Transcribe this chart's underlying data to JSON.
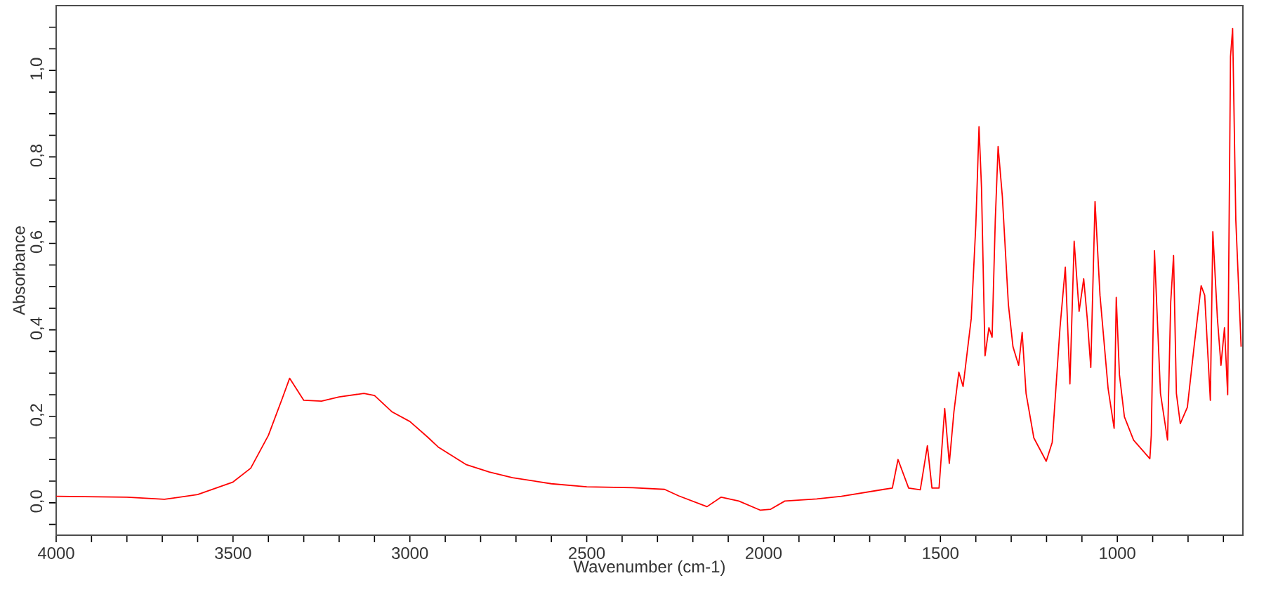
{
  "chart_data": {
    "type": "line",
    "xlabel": "Wavenumber (cm-1)",
    "ylabel": "Absorbance",
    "xlim": [
      4000,
      645
    ],
    "ylim": [
      -0.075,
      1.15
    ],
    "xticks": [
      {
        "value": 4000,
        "label": "4000"
      },
      {
        "value": 3900,
        "label": null
      },
      {
        "value": 3800,
        "label": null
      },
      {
        "value": 3700,
        "label": null
      },
      {
        "value": 3600,
        "label": null
      },
      {
        "value": 3500,
        "label": "3500"
      },
      {
        "value": 3400,
        "label": null
      },
      {
        "value": 3300,
        "label": null
      },
      {
        "value": 3200,
        "label": null
      },
      {
        "value": 3100,
        "label": null
      },
      {
        "value": 3000,
        "label": "3000"
      },
      {
        "value": 2900,
        "label": null
      },
      {
        "value": 2800,
        "label": null
      },
      {
        "value": 2700,
        "label": null
      },
      {
        "value": 2600,
        "label": null
      },
      {
        "value": 2500,
        "label": "2500"
      },
      {
        "value": 2400,
        "label": null
      },
      {
        "value": 2300,
        "label": null
      },
      {
        "value": 2200,
        "label": null
      },
      {
        "value": 2100,
        "label": null
      },
      {
        "value": 2000,
        "label": "2000"
      },
      {
        "value": 1900,
        "label": null
      },
      {
        "value": 1800,
        "label": null
      },
      {
        "value": 1700,
        "label": null
      },
      {
        "value": 1600,
        "label": null
      },
      {
        "value": 1500,
        "label": "1500"
      },
      {
        "value": 1400,
        "label": null
      },
      {
        "value": 1300,
        "label": null
      },
      {
        "value": 1200,
        "label": null
      },
      {
        "value": 1100,
        "label": null
      },
      {
        "value": 1000,
        "label": "1000"
      },
      {
        "value": 900,
        "label": null
      },
      {
        "value": 800,
        "label": null
      },
      {
        "value": 700,
        "label": null
      }
    ],
    "yticks": [
      {
        "value": -0.05,
        "label": null
      },
      {
        "value": 0,
        "label": "0,0"
      },
      {
        "value": 0.05,
        "label": null
      },
      {
        "value": 0.1,
        "label": null
      },
      {
        "value": 0.15,
        "label": null
      },
      {
        "value": 0.2,
        "label": "0,2"
      },
      {
        "value": 0.25,
        "label": null
      },
      {
        "value": 0.3,
        "label": null
      },
      {
        "value": 0.35,
        "label": null
      },
      {
        "value": 0.4,
        "label": "0,4"
      },
      {
        "value": 0.45,
        "label": null
      },
      {
        "value": 0.5,
        "label": null
      },
      {
        "value": 0.55,
        "label": null
      },
      {
        "value": 0.6,
        "label": "0,6"
      },
      {
        "value": 0.65,
        "label": null
      },
      {
        "value": 0.7,
        "label": null
      },
      {
        "value": 0.75,
        "label": null
      },
      {
        "value": 0.8,
        "label": "0,8"
      },
      {
        "value": 0.85,
        "label": null
      },
      {
        "value": 0.9,
        "label": null
      },
      {
        "value": 0.95,
        "label": null
      },
      {
        "value": 1.0,
        "label": "1,0"
      },
      {
        "value": 1.05,
        "label": null
      },
      {
        "value": 1.1,
        "label": null
      }
    ],
    "series": [
      {
        "color": "#ff0000",
        "x": [
          4000,
          3800,
          3694,
          3600,
          3500,
          3450,
          3400,
          3360,
          3340,
          3300,
          3250,
          3200,
          3130,
          3100,
          3050,
          3000,
          2950,
          2920,
          2840,
          2775,
          2710,
          2600,
          2500,
          2370,
          2280,
          2240,
          2160,
          2120,
          2070,
          2010,
          1980,
          1940,
          1850,
          1780,
          1660,
          1636,
          1620,
          1590,
          1557,
          1537,
          1524,
          1504,
          1488,
          1475,
          1462,
          1448,
          1436,
          1413,
          1400,
          1391,
          1384,
          1374,
          1363,
          1354,
          1345,
          1337,
          1325,
          1308,
          1295,
          1279,
          1269,
          1258,
          1236,
          1201,
          1184,
          1162,
          1147,
          1134,
          1122,
          1108,
          1095,
          1085,
          1075,
          1063,
          1049,
          1026,
          1009,
          1003,
          994,
          980,
          954,
          908,
          904,
          895,
          878,
          858,
          849,
          841,
          833,
          822,
          802,
          783,
          763,
          753,
          737,
          730,
          717,
          707,
          697,
          688,
          680,
          674,
          665,
          650
        ],
        "values": [
          0.015,
          0.013,
          0.008,
          0.019,
          0.048,
          0.08,
          0.156,
          0.243,
          0.288,
          0.237,
          0.235,
          0.245,
          0.253,
          0.248,
          0.21,
          0.188,
          0.152,
          0.129,
          0.088,
          0.071,
          0.058,
          0.044,
          0.037,
          0.035,
          0.031,
          0.016,
          -0.009,
          0.013,
          0.004,
          -0.017,
          -0.015,
          0.004,
          0.009,
          0.015,
          0.031,
          0.034,
          0.1,
          0.034,
          0.03,
          0.132,
          0.034,
          0.034,
          0.218,
          0.091,
          0.21,
          0.302,
          0.269,
          0.426,
          0.643,
          0.87,
          0.73,
          0.34,
          0.405,
          0.383,
          0.654,
          0.824,
          0.708,
          0.459,
          0.361,
          0.318,
          0.394,
          0.253,
          0.15,
          0.096,
          0.14,
          0.405,
          0.545,
          0.275,
          0.605,
          0.443,
          0.518,
          0.426,
          0.313,
          0.697,
          0.48,
          0.264,
          0.172,
          0.475,
          0.296,
          0.199,
          0.145,
          0.102,
          0.156,
          0.583,
          0.253,
          0.145,
          0.465,
          0.572,
          0.253,
          0.183,
          0.221,
          0.361,
          0.502,
          0.48,
          0.237,
          0.627,
          0.426,
          0.318,
          0.405,
          0.25,
          1.032,
          1.097,
          0.654,
          0.361
        ]
      }
    ]
  }
}
